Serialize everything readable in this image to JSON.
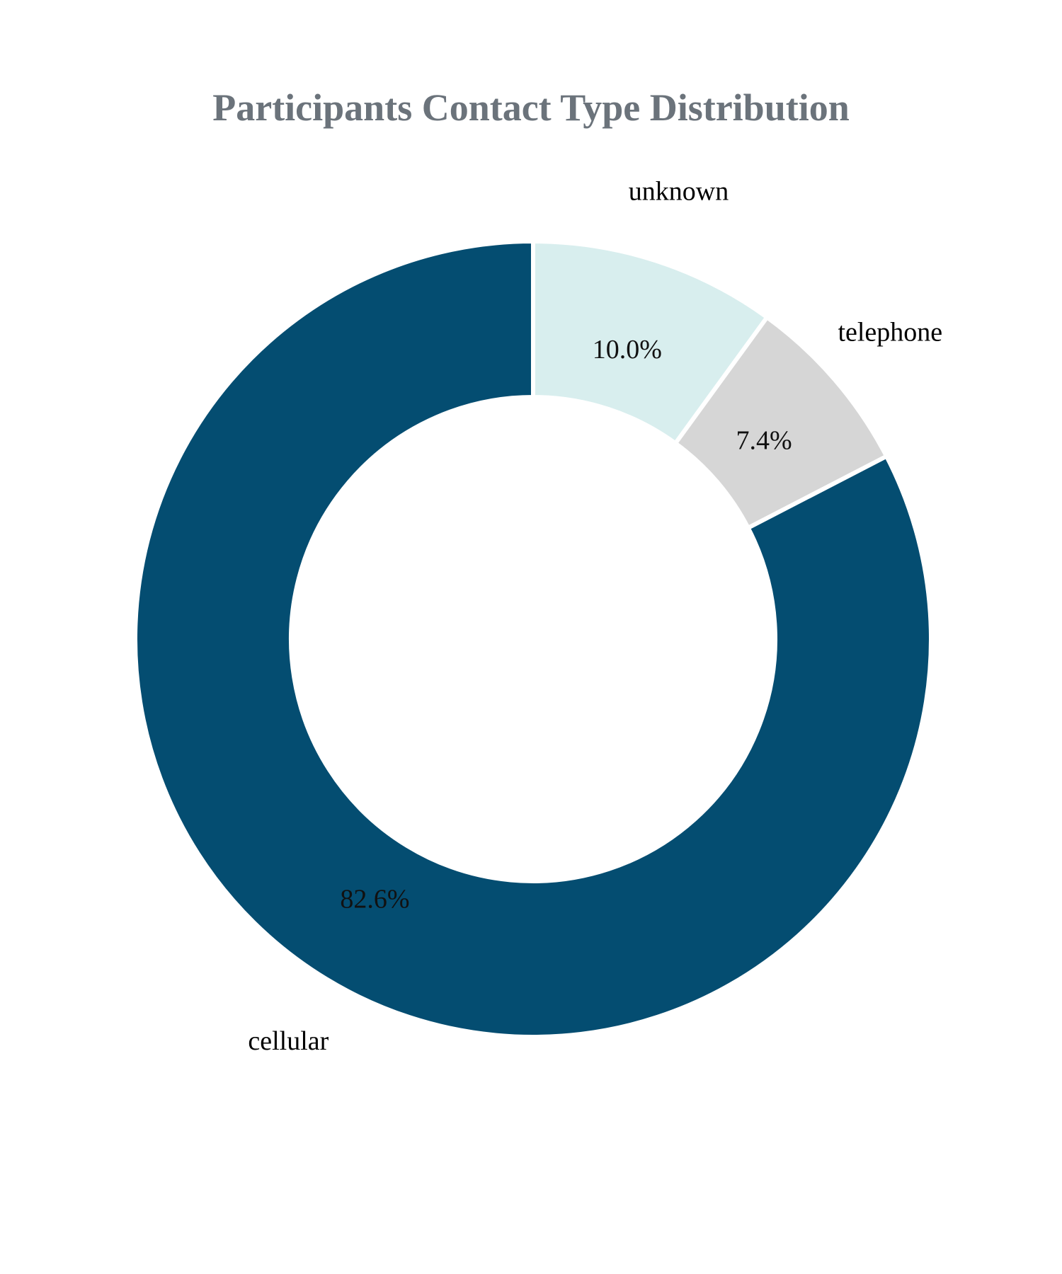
{
  "chart_data": {
    "type": "pie",
    "style": "donut",
    "title": "Participants Contact Type Distribution",
    "start_angle": "12 o'clock",
    "direction": "clockwise",
    "slices": [
      {
        "label": "unknown",
        "value": 10.0,
        "pct_text": "10.0%",
        "color": "#d8eeee"
      },
      {
        "label": "telephone",
        "value": 7.4,
        "pct_text": "7.4%",
        "color": "#d6d6d6"
      },
      {
        "label": "cellular",
        "value": 82.6,
        "pct_text": "82.6%",
        "color": "#044d71"
      }
    ],
    "colors": {
      "title": "#6b737b",
      "separator": "#ffffff",
      "background": "#ffffff"
    }
  }
}
